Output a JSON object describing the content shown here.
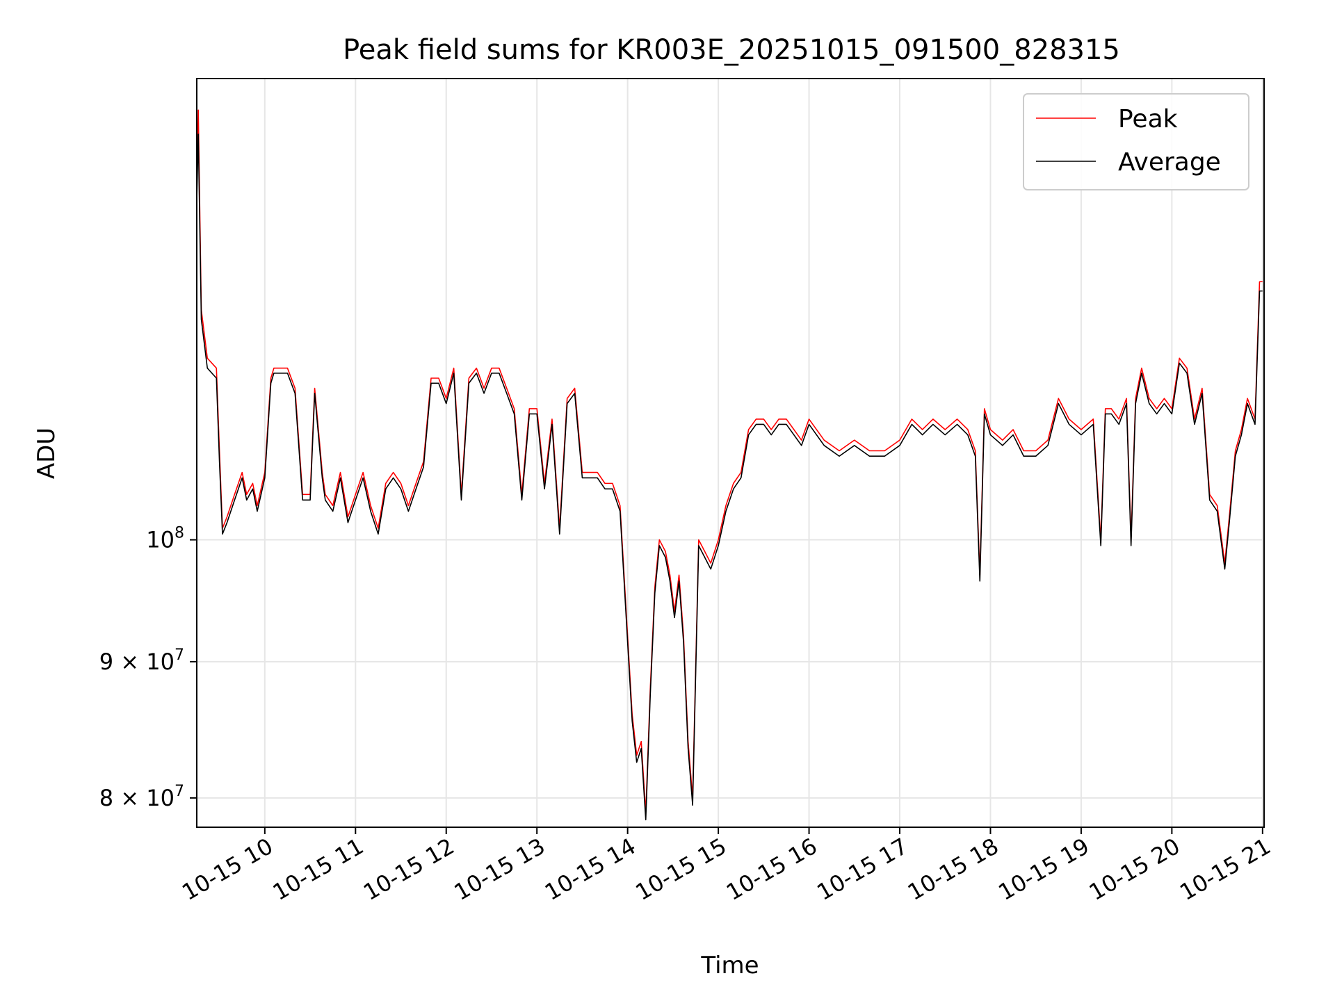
{
  "chart_data": {
    "type": "line",
    "title": "Peak field sums for KR003E_20251015_091500_828315",
    "xlabel": "Time",
    "ylabel": "ADU",
    "x_axis_kind": "time",
    "y_scale": "log",
    "grid": true,
    "legend_placement": "top-right",
    "xlim": [
      "2025-10-15T09:15",
      "2025-10-15T21:01"
    ],
    "ylim": [
      78000000,
      149000000
    ],
    "x_ticks": [
      "2025-10-15T10:00",
      "2025-10-15T11:00",
      "2025-10-15T12:00",
      "2025-10-15T13:00",
      "2025-10-15T14:00",
      "2025-10-15T15:00",
      "2025-10-15T16:00",
      "2025-10-15T17:00",
      "2025-10-15T18:00",
      "2025-10-15T19:00",
      "2025-10-15T20:00",
      "2025-10-15T21:00"
    ],
    "x_tick_labels": [
      "10-15 10",
      "10-15 11",
      "10-15 12",
      "10-15 13",
      "10-15 14",
      "10-15 15",
      "10-15 16",
      "10-15 17",
      "10-15 18",
      "10-15 19",
      "10-15 20",
      "10-15 21"
    ],
    "y_ticks": [
      {
        "value": 100000000,
        "base": "10",
        "exp": "8"
      },
      {
        "value": 90000000,
        "base": "9 × 10",
        "exp": "7"
      },
      {
        "value": 80000000,
        "base": "8 × 10",
        "exp": "7"
      }
    ],
    "series": [
      {
        "name": "Peak",
        "color": "#ff0000"
      },
      {
        "name": "Average",
        "color": "#000000"
      }
    ],
    "x": [
      "2025-10-15T09:15",
      "2025-10-15T09:16",
      "2025-10-15T09:18",
      "2025-10-15T09:22",
      "2025-10-15T09:28",
      "2025-10-15T09:30",
      "2025-10-15T09:32",
      "2025-10-15T09:35",
      "2025-10-15T09:40",
      "2025-10-15T09:45",
      "2025-10-15T09:48",
      "2025-10-15T09:52",
      "2025-10-15T09:55",
      "2025-10-15T10:00",
      "2025-10-15T10:04",
      "2025-10-15T10:06",
      "2025-10-15T10:10",
      "2025-10-15T10:15",
      "2025-10-15T10:20",
      "2025-10-15T10:25",
      "2025-10-15T10:30",
      "2025-10-15T10:33",
      "2025-10-15T10:38",
      "2025-10-15T10:40",
      "2025-10-15T10:45",
      "2025-10-15T10:50",
      "2025-10-15T10:55",
      "2025-10-15T11:00",
      "2025-10-15T11:05",
      "2025-10-15T11:10",
      "2025-10-15T11:15",
      "2025-10-15T11:20",
      "2025-10-15T11:25",
      "2025-10-15T11:30",
      "2025-10-15T11:35",
      "2025-10-15T11:40",
      "2025-10-15T11:45",
      "2025-10-15T11:50",
      "2025-10-15T11:55",
      "2025-10-15T12:00",
      "2025-10-15T12:05",
      "2025-10-15T12:10",
      "2025-10-15T12:15",
      "2025-10-15T12:20",
      "2025-10-15T12:25",
      "2025-10-15T12:30",
      "2025-10-15T12:35",
      "2025-10-15T12:40",
      "2025-10-15T12:45",
      "2025-10-15T12:50",
      "2025-10-15T12:55",
      "2025-10-15T13:00",
      "2025-10-15T13:05",
      "2025-10-15T13:10",
      "2025-10-15T13:15",
      "2025-10-15T13:20",
      "2025-10-15T13:25",
      "2025-10-15T13:30",
      "2025-10-15T13:35",
      "2025-10-15T13:40",
      "2025-10-15T13:45",
      "2025-10-15T13:50",
      "2025-10-15T13:55",
      "2025-10-15T14:00",
      "2025-10-15T14:03",
      "2025-10-15T14:06",
      "2025-10-15T14:09",
      "2025-10-15T14:12",
      "2025-10-15T14:15",
      "2025-10-15T14:18",
      "2025-10-15T14:21",
      "2025-10-15T14:25",
      "2025-10-15T14:28",
      "2025-10-15T14:31",
      "2025-10-15T14:34",
      "2025-10-15T14:37",
      "2025-10-15T14:40",
      "2025-10-15T14:43",
      "2025-10-15T14:47",
      "2025-10-15T14:51",
      "2025-10-15T14:55",
      "2025-10-15T15:00",
      "2025-10-15T15:05",
      "2025-10-15T15:10",
      "2025-10-15T15:15",
      "2025-10-15T15:20",
      "2025-10-15T15:25",
      "2025-10-15T15:30",
      "2025-10-15T15:35",
      "2025-10-15T15:40",
      "2025-10-15T15:45",
      "2025-10-15T15:50",
      "2025-10-15T15:55",
      "2025-10-15T16:00",
      "2025-10-15T16:10",
      "2025-10-15T16:20",
      "2025-10-15T16:30",
      "2025-10-15T16:40",
      "2025-10-15T16:50",
      "2025-10-15T17:00",
      "2025-10-15T17:08",
      "2025-10-15T17:15",
      "2025-10-15T17:22",
      "2025-10-15T17:30",
      "2025-10-15T17:38",
      "2025-10-15T17:45",
      "2025-10-15T17:50",
      "2025-10-15T17:53",
      "2025-10-15T17:56",
      "2025-10-15T18:00",
      "2025-10-15T18:08",
      "2025-10-15T18:15",
      "2025-10-15T18:22",
      "2025-10-15T18:30",
      "2025-10-15T18:38",
      "2025-10-15T18:45",
      "2025-10-15T18:52",
      "2025-10-15T19:00",
      "2025-10-15T19:08",
      "2025-10-15T19:13",
      "2025-10-15T19:16",
      "2025-10-15T19:20",
      "2025-10-15T19:25",
      "2025-10-15T19:30",
      "2025-10-15T19:33",
      "2025-10-15T19:36",
      "2025-10-15T19:40",
      "2025-10-15T19:45",
      "2025-10-15T19:50",
      "2025-10-15T19:55",
      "2025-10-15T20:00",
      "2025-10-15T20:05",
      "2025-10-15T20:10",
      "2025-10-15T20:15",
      "2025-10-15T20:20",
      "2025-10-15T20:25",
      "2025-10-15T20:30",
      "2025-10-15T20:35",
      "2025-10-15T20:38",
      "2025-10-15T20:42",
      "2025-10-15T20:46",
      "2025-10-15T20:50",
      "2025-10-15T20:55",
      "2025-10-15T20:58",
      "2025-10-15T21:00",
      "2025-10-15T21:01"
    ],
    "peak": [
      135000000,
      145000000,
      122000000,
      117000000,
      116000000,
      108000000,
      101000000,
      102000000,
      104000000,
      106000000,
      104000000,
      105000000,
      103000000,
      106000000,
      115000000,
      116000000,
      116000000,
      116000000,
      114000000,
      104000000,
      104000000,
      114000000,
      106000000,
      104000000,
      103000000,
      106000000,
      102000000,
      104000000,
      106000000,
      103000000,
      101000000,
      105000000,
      106000000,
      105000000,
      103000000,
      105000000,
      107000000,
      115000000,
      115000000,
      113000000,
      116000000,
      104000000,
      115000000,
      116000000,
      114000000,
      116000000,
      116000000,
      114000000,
      112000000,
      104000000,
      112000000,
      112000000,
      105000000,
      111000000,
      101000000,
      113000000,
      114000000,
      106000000,
      106000000,
      106000000,
      105000000,
      105000000,
      103000000,
      92000000,
      86000000,
      83000000,
      84000000,
      79000000,
      88000000,
      96000000,
      100000000,
      99000000,
      97000000,
      94000000,
      97000000,
      92000000,
      84000000,
      80000000,
      100000000,
      99000000,
      98000000,
      100000000,
      103000000,
      105000000,
      106000000,
      110000000,
      111000000,
      111000000,
      110000000,
      111000000,
      111000000,
      110000000,
      109000000,
      111000000,
      109000000,
      108000000,
      109000000,
      108000000,
      108000000,
      109000000,
      111000000,
      110000000,
      111000000,
      110000000,
      111000000,
      110000000,
      108000000,
      97000000,
      112000000,
      110000000,
      109000000,
      110000000,
      108000000,
      108000000,
      109000000,
      113000000,
      111000000,
      110000000,
      111000000,
      100000000,
      112000000,
      112000000,
      111000000,
      113000000,
      100000000,
      113000000,
      116000000,
      113000000,
      112000000,
      113000000,
      112000000,
      117000000,
      116000000,
      111000000,
      114000000,
      104000000,
      103000000,
      98000000,
      102000000,
      108000000,
      110000000,
      113000000,
      111000000,
      125000000,
      125000000
    ],
    "average": [
      134000000,
      142000000,
      121000000,
      116000000,
      115000000,
      107000000,
      100500000,
      101500000,
      103500000,
      105500000,
      103500000,
      104500000,
      102500000,
      105500000,
      114500000,
      115500000,
      115500000,
      115500000,
      113500000,
      103500000,
      103500000,
      113500000,
      105500000,
      103500000,
      102500000,
      105500000,
      101500000,
      103500000,
      105500000,
      102500000,
      100500000,
      104500000,
      105500000,
      104500000,
      102500000,
      104500000,
      106500000,
      114500000,
      114500000,
      112500000,
      115500000,
      103500000,
      114500000,
      115500000,
      113500000,
      115500000,
      115500000,
      113500000,
      111500000,
      103500000,
      111500000,
      111500000,
      104500000,
      110500000,
      100500000,
      112500000,
      113500000,
      105500000,
      105500000,
      105500000,
      104500000,
      104500000,
      102500000,
      91500000,
      85500000,
      82500000,
      83500000,
      78500000,
      87500000,
      95500000,
      99500000,
      98500000,
      96500000,
      93500000,
      96500000,
      91500000,
      83500000,
      79500000,
      99500000,
      98500000,
      97500000,
      99500000,
      102500000,
      104500000,
      105500000,
      109500000,
      110500000,
      110500000,
      109500000,
      110500000,
      110500000,
      109500000,
      108500000,
      110500000,
      108500000,
      107500000,
      108500000,
      107500000,
      107500000,
      108500000,
      110500000,
      109500000,
      110500000,
      109500000,
      110500000,
      109500000,
      107500000,
      96500000,
      111500000,
      109500000,
      108500000,
      109500000,
      107500000,
      107500000,
      108500000,
      112500000,
      110500000,
      109500000,
      110500000,
      99500000,
      111500000,
      111500000,
      110500000,
      112500000,
      99500000,
      112500000,
      115500000,
      112500000,
      111500000,
      112500000,
      111500000,
      116500000,
      115500000,
      110500000,
      113500000,
      103500000,
      102500000,
      97500000,
      101500000,
      107500000,
      109500000,
      112500000,
      110500000,
      124000000,
      124000000
    ]
  }
}
